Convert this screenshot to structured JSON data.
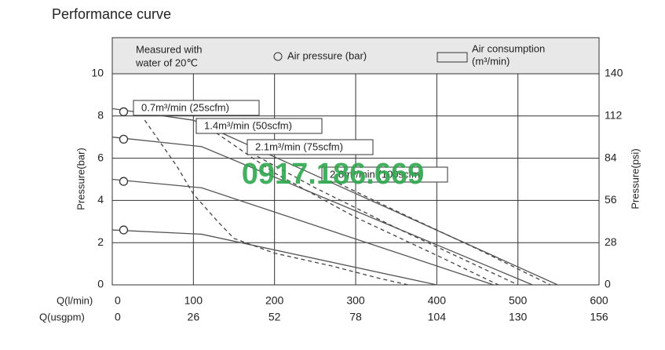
{
  "chart_data": {
    "type": "line",
    "title": "Performance curve",
    "header_note": [
      "Measured with",
      "water of 20℃"
    ],
    "marker_legend": "Air pressure (bar)",
    "box_legend": [
      "Air consumption",
      "(m³/min)"
    ],
    "xlabel": "Q(l/min)",
    "x2label": "Q(usgpm)",
    "ylabel": "Pressure(bar)",
    "y2label": "Pressure(psi)",
    "xlim": [
      0,
      600
    ],
    "xticks": [
      0,
      100,
      200,
      300,
      400,
      500,
      600
    ],
    "x2lim": [
      0,
      156
    ],
    "x2ticks": [
      0,
      26,
      52,
      78,
      104,
      130,
      156
    ],
    "ylim": [
      0,
      10
    ],
    "yticks": [
      0,
      2,
      4,
      6,
      8,
      10
    ],
    "y2lim": [
      0,
      140
    ],
    "y2ticks": [
      0,
      28,
      56,
      84,
      112,
      140
    ],
    "grid": true,
    "series": [
      {
        "color": "#555555",
        "x": [
          0,
          100,
          549
        ],
        "values": [
          8.35,
          7.8,
          0
        ]
      },
      {
        "color": "#555555",
        "x": [
          0,
          110,
          518
        ],
        "values": [
          7.0,
          6.55,
          0
        ]
      },
      {
        "color": "#555555",
        "x": [
          0,
          110,
          470
        ],
        "values": [
          5.0,
          4.6,
          0
        ]
      },
      {
        "color": "#555555",
        "x": [
          0,
          110,
          400
        ],
        "values": [
          2.6,
          2.4,
          0
        ]
      },
      {
        "name": "0.7m³/min (25scfm)",
        "color": "#444444",
        "dash": true,
        "x": [
          40,
          80,
          100,
          130,
          150,
          200,
          270,
          330,
          365
        ],
        "values": [
          7.8,
          5.6,
          4.3,
          3,
          2.2,
          1.5,
          0.9,
          0.3,
          0
        ]
      },
      {
        "name": "1.4m³/min (50scfm)",
        "color": "#444444",
        "dash": true,
        "x": [
          128,
          200,
          300,
          400,
          476
        ],
        "values": [
          7.2,
          5.3,
          3.2,
          1.4,
          0
        ]
      },
      {
        "name": "2.1m³/min (75scfm)",
        "color": "#444444",
        "dash": true,
        "x": [
          171,
          250,
          350,
          450,
          500
        ],
        "values": [
          6.25,
          4.6,
          2.7,
          0.9,
          0
        ]
      },
      {
        "name": "2.8m³/min (100scfm)",
        "color": "#444444",
        "dash": true,
        "x": [
          263,
          350,
          450,
          540
        ],
        "values": [
          5.1,
          3.5,
          1.7,
          0
        ]
      }
    ],
    "air_pressure_points": {
      "x": [
        14,
        14,
        14,
        14
      ],
      "values": [
        8.2,
        6.9,
        4.9,
        2.6
      ]
    },
    "watermark": "0917.186.669"
  }
}
